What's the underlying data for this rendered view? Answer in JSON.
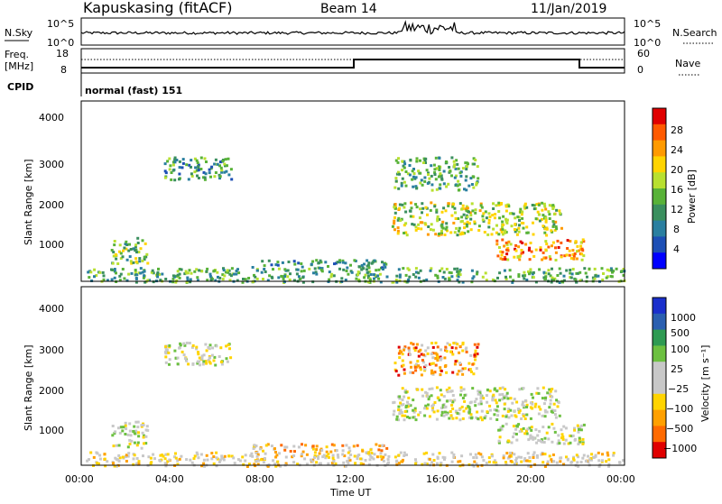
{
  "header": {
    "station": "Kapuskasing (fitACF)",
    "beam": "Beam 14",
    "date": "11/Jan/2019"
  },
  "panels": {
    "nsky": {
      "label": "N.Sky",
      "ticks": [
        "10^5",
        "10^0"
      ]
    },
    "nsearch": {
      "label": "N.Search",
      "ticks": [
        "10^5",
        "10^0"
      ]
    },
    "freq": {
      "label_top": "Freq.",
      "label_bottom": "[MHz]",
      "ticks": [
        "18",
        "8"
      ]
    },
    "nave": {
      "label": "Nave",
      "ticks": [
        "60",
        "0"
      ]
    },
    "cpid": {
      "label": "CPID",
      "value": "normal (fast) 151"
    }
  },
  "chart_data": [
    {
      "type": "heatmap",
      "name": "power",
      "ylabel": "Slant Range [km]",
      "yticks": [
        "4000",
        "3000",
        "2000",
        "1000"
      ],
      "ylim": [
        200,
        4600
      ],
      "xlim": [
        0,
        24
      ],
      "colorbar": {
        "label": "Power [dB]",
        "ticks": [
          "28",
          "24",
          "20",
          "16",
          "12",
          "8",
          "4"
        ],
        "colors": [
          "#0000ff",
          "#1d4fb5",
          "#2a7fa0",
          "#3a8f5e",
          "#58b238",
          "#b8e030",
          "#ffd400",
          "#ff9a00",
          "#ff5a00",
          "#e00000"
        ]
      },
      "regions": [
        {
          "t": [
            3.6,
            6.7
          ],
          "r": [
            2700,
            3250
          ],
          "level": 0.35
        },
        {
          "t": [
            1.3,
            2.9
          ],
          "r": [
            650,
            1300
          ],
          "level": 0.45
        },
        {
          "t": [
            13.7,
            21.2
          ],
          "r": [
            1350,
            2150
          ],
          "level": 0.55
        },
        {
          "t": [
            13.8,
            17.5
          ],
          "r": [
            2450,
            3250
          ],
          "level": 0.4
        },
        {
          "t": [
            18.3,
            22.2
          ],
          "r": [
            750,
            1250
          ],
          "level": 0.75
        },
        {
          "t": [
            7.5,
            13.5
          ],
          "r": [
            550,
            750
          ],
          "level": 0.3
        },
        {
          "t": [
            0.2,
            24
          ],
          "r": [
            200,
            550
          ],
          "level": 0.4
        }
      ]
    },
    {
      "type": "heatmap",
      "name": "velocity",
      "ylabel": "Slant Range [km]",
      "yticks": [
        "4000",
        "3000",
        "2000",
        "1000"
      ],
      "ylim": [
        200,
        4600
      ],
      "xlim": [
        0,
        24
      ],
      "colorbar": {
        "label": "Velocity [m s⁻¹]",
        "ticks": [
          "1000",
          "500",
          "100",
          "25",
          "−25",
          "−100",
          "−500",
          "−1000"
        ],
        "colors": [
          "#1a2fcc",
          "#2a5fb0",
          "#2e9a52",
          "#6cc040",
          "#c8c8c8",
          "#c8c8c8",
          "#ffd400",
          "#ffa000",
          "#ff6a00",
          "#e00000"
        ]
      },
      "regions": [
        {
          "t": [
            3.6,
            6.7
          ],
          "r": [
            2700,
            3250
          ],
          "level": 0.5
        },
        {
          "t": [
            1.3,
            2.9
          ],
          "r": [
            650,
            1300
          ],
          "level": 0.5
        },
        {
          "t": [
            13.7,
            21.2
          ],
          "r": [
            1350,
            2150
          ],
          "level": 0.5
        },
        {
          "t": [
            13.8,
            17.5
          ],
          "r": [
            2450,
            3250
          ],
          "level": 0.75
        },
        {
          "t": [
            18.3,
            22.2
          ],
          "r": [
            750,
            1250
          ],
          "level": 0.5
        },
        {
          "t": [
            7.5,
            13.5
          ],
          "r": [
            550,
            750
          ],
          "level": 0.65
        },
        {
          "t": [
            0.2,
            24
          ],
          "r": [
            200,
            550
          ],
          "level": 0.6
        }
      ]
    }
  ],
  "xaxis": {
    "ticks": [
      "00:00",
      "04:00",
      "08:00",
      "12:00",
      "16:00",
      "20:00",
      "00:00"
    ],
    "label": "Time UT"
  }
}
